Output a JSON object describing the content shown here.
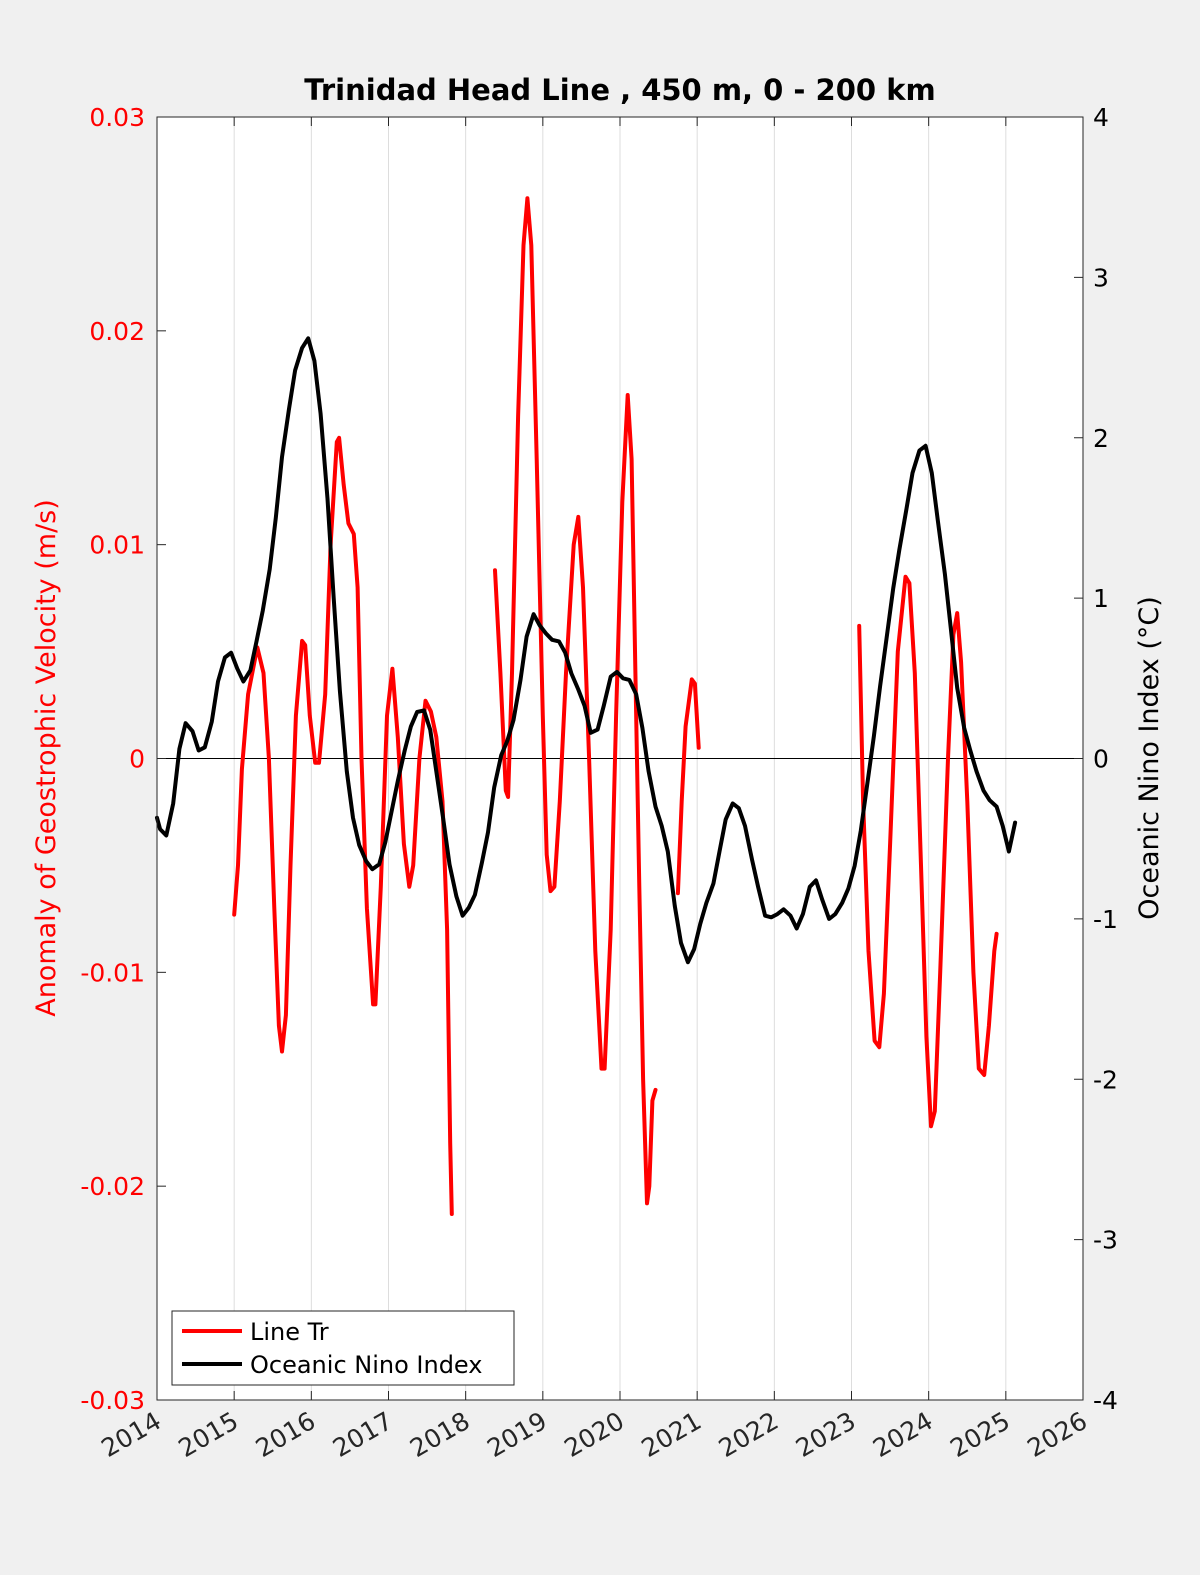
{
  "chart_data": {
    "type": "line",
    "title": "Trinidad Head Line , 450 m, 0 - 200 km",
    "ylabel_left": "Anomaly of Geostrophic Velocity (m/s)",
    "ylabel_right": "Oceanic Nino Index (°C)",
    "xlim": [
      2014,
      2026
    ],
    "ylim_left": [
      -0.03,
      0.03
    ],
    "ylim_right": [
      -4,
      4
    ],
    "x_ticks": [
      "2014",
      "2015",
      "2016",
      "2017",
      "2018",
      "2019",
      "2020",
      "2021",
      "2022",
      "2023",
      "2024",
      "2025",
      "2026"
    ],
    "y_left_ticks": [
      "-0.03",
      "-0.02",
      "-0.01",
      "0",
      "0.01",
      "0.02",
      "0.03"
    ],
    "y_right_ticks": [
      "-4",
      "-3",
      "-2",
      "-1",
      "0",
      "1",
      "2",
      "3",
      "4"
    ],
    "grid": "vertical",
    "legend_position": "bottom-left",
    "colors": {
      "line_tr": "#ff0000",
      "oni": "#000000",
      "left_axis": "#ff0000",
      "right_axis": "#000000",
      "grid": "#dddddd"
    },
    "series": [
      {
        "name": "Line Tr",
        "axis": "left",
        "segments": [
          [
            [
              2015.0,
              -0.0073
            ],
            [
              2015.05,
              -0.005
            ],
            [
              2015.1,
              -0.0005
            ],
            [
              2015.18,
              0.003
            ],
            [
              2015.3,
              0.0052
            ],
            [
              2015.38,
              0.004
            ],
            [
              2015.45,
              0.0
            ],
            [
              2015.52,
              -0.007
            ],
            [
              2015.58,
              -0.0125
            ],
            [
              2015.62,
              -0.0137
            ],
            [
              2015.67,
              -0.012
            ],
            [
              2015.73,
              -0.005
            ],
            [
              2015.8,
              0.002
            ],
            [
              2015.88,
              0.0055
            ],
            [
              2015.92,
              0.0053
            ],
            [
              2015.98,
              0.002
            ],
            [
              2016.05,
              -0.0002
            ],
            [
              2016.1,
              -0.0002
            ],
            [
              2016.18,
              0.003
            ],
            [
              2016.25,
              0.01
            ],
            [
              2016.33,
              0.0148
            ],
            [
              2016.36,
              0.015
            ],
            [
              2016.42,
              0.0128
            ],
            [
              2016.48,
              0.011
            ],
            [
              2016.55,
              0.0105
            ],
            [
              2016.6,
              0.008
            ],
            [
              2016.65,
              0.0
            ],
            [
              2016.72,
              -0.007
            ],
            [
              2016.8,
              -0.0115
            ],
            [
              2016.83,
              -0.0115
            ],
            [
              2016.9,
              -0.006
            ],
            [
              2016.98,
              0.002
            ],
            [
              2017.05,
              0.0042
            ],
            [
              2017.12,
              0.001
            ],
            [
              2017.2,
              -0.004
            ],
            [
              2017.27,
              -0.006
            ],
            [
              2017.32,
              -0.005
            ],
            [
              2017.4,
              0.0
            ],
            [
              2017.48,
              0.0027
            ],
            [
              2017.55,
              0.0022
            ],
            [
              2017.62,
              0.001
            ],
            [
              2017.7,
              -0.002
            ],
            [
              2017.76,
              -0.008
            ],
            [
              2017.8,
              -0.018
            ],
            [
              2017.82,
              -0.0213
            ]
          ],
          [
            [
              2018.38,
              0.0088
            ],
            [
              2018.45,
              0.004
            ],
            [
              2018.52,
              -0.0015
            ],
            [
              2018.55,
              -0.0018
            ],
            [
              2018.6,
              0.004
            ],
            [
              2018.68,
              0.016
            ],
            [
              2018.75,
              0.024
            ],
            [
              2018.8,
              0.0262
            ],
            [
              2018.85,
              0.024
            ],
            [
              2018.92,
              0.014
            ],
            [
              2019.0,
              0.002
            ],
            [
              2019.05,
              -0.0045
            ],
            [
              2019.1,
              -0.0062
            ],
            [
              2019.15,
              -0.006
            ],
            [
              2019.22,
              -0.002
            ],
            [
              2019.3,
              0.004
            ],
            [
              2019.4,
              0.01
            ],
            [
              2019.46,
              0.0113
            ],
            [
              2019.52,
              0.008
            ],
            [
              2019.6,
              0.0
            ],
            [
              2019.68,
              -0.009
            ],
            [
              2019.76,
              -0.0145
            ],
            [
              2019.8,
              -0.0145
            ],
            [
              2019.88,
              -0.008
            ],
            [
              2019.95,
              0.002
            ],
            [
              2020.03,
              0.012
            ],
            [
              2020.1,
              0.017
            ],
            [
              2020.15,
              0.014
            ],
            [
              2020.2,
              0.004
            ],
            [
              2020.25,
              -0.006
            ],
            [
              2020.3,
              -0.015
            ],
            [
              2020.35,
              -0.0208
            ],
            [
              2020.38,
              -0.02
            ],
            [
              2020.42,
              -0.016
            ],
            [
              2020.46,
              -0.0155
            ]
          ],
          [
            [
              2020.75,
              -0.0063
            ],
            [
              2020.8,
              -0.002
            ],
            [
              2020.85,
              0.0015
            ],
            [
              2020.93,
              0.0037
            ],
            [
              2020.97,
              0.0035
            ],
            [
              2021.02,
              0.0005
            ]
          ],
          [
            [
              2023.1,
              0.0062
            ],
            [
              2023.15,
              -0.002
            ],
            [
              2023.22,
              -0.009
            ],
            [
              2023.3,
              -0.0132
            ],
            [
              2023.36,
              -0.0135
            ],
            [
              2023.42,
              -0.011
            ],
            [
              2023.5,
              -0.004
            ],
            [
              2023.6,
              0.005
            ],
            [
              2023.7,
              0.0085
            ],
            [
              2023.75,
              0.0082
            ],
            [
              2023.82,
              0.004
            ],
            [
              2023.9,
              -0.005
            ],
            [
              2023.97,
              -0.013
            ],
            [
              2024.03,
              -0.0172
            ],
            [
              2024.08,
              -0.0165
            ],
            [
              2024.15,
              -0.01
            ],
            [
              2024.25,
              0.0
            ],
            [
              2024.32,
              0.0058
            ],
            [
              2024.37,
              0.0068
            ],
            [
              2024.42,
              0.0045
            ],
            [
              2024.5,
              -0.002
            ],
            [
              2024.58,
              -0.01
            ],
            [
              2024.65,
              -0.0145
            ],
            [
              2024.72,
              -0.0148
            ],
            [
              2024.78,
              -0.0125
            ],
            [
              2024.85,
              -0.009
            ],
            [
              2024.88,
              -0.0082
            ]
          ]
        ]
      },
      {
        "name": "Oceanic Nino Index",
        "axis": "right",
        "segments": [
          [
            [
              2014.0,
              -0.37
            ],
            [
              2014.04,
              -0.44
            ],
            [
              2014.12,
              -0.48
            ],
            [
              2014.21,
              -0.28
            ],
            [
              2014.29,
              0.06
            ],
            [
              2014.37,
              0.22
            ],
            [
              2014.46,
              0.17
            ],
            [
              2014.54,
              0.05
            ],
            [
              2014.62,
              0.07
            ],
            [
              2014.71,
              0.23
            ],
            [
              2014.79,
              0.48
            ],
            [
              2014.88,
              0.63
            ],
            [
              2014.96,
              0.66
            ],
            [
              2015.04,
              0.56
            ],
            [
              2015.12,
              0.48
            ],
            [
              2015.21,
              0.55
            ],
            [
              2015.29,
              0.73
            ],
            [
              2015.37,
              0.92
            ],
            [
              2015.46,
              1.18
            ],
            [
              2015.54,
              1.5
            ],
            [
              2015.62,
              1.88
            ],
            [
              2015.71,
              2.18
            ],
            [
              2015.79,
              2.42
            ],
            [
              2015.88,
              2.56
            ],
            [
              2015.96,
              2.62
            ],
            [
              2016.04,
              2.48
            ],
            [
              2016.12,
              2.15
            ],
            [
              2016.21,
              1.62
            ],
            [
              2016.29,
              1.0
            ],
            [
              2016.37,
              0.42
            ],
            [
              2016.46,
              -0.08
            ],
            [
              2016.54,
              -0.37
            ],
            [
              2016.62,
              -0.54
            ],
            [
              2016.71,
              -0.64
            ],
            [
              2016.79,
              -0.69
            ],
            [
              2016.88,
              -0.66
            ],
            [
              2016.96,
              -0.52
            ],
            [
              2017.04,
              -0.33
            ],
            [
              2017.12,
              -0.14
            ],
            [
              2017.21,
              0.05
            ],
            [
              2017.29,
              0.2
            ],
            [
              2017.37,
              0.29
            ],
            [
              2017.46,
              0.3
            ],
            [
              2017.54,
              0.18
            ],
            [
              2017.62,
              -0.08
            ],
            [
              2017.71,
              -0.38
            ],
            [
              2017.79,
              -0.66
            ],
            [
              2017.88,
              -0.86
            ],
            [
              2017.96,
              -0.98
            ],
            [
              2018.04,
              -0.93
            ],
            [
              2018.12,
              -0.85
            ],
            [
              2018.21,
              -0.65
            ],
            [
              2018.29,
              -0.46
            ],
            [
              2018.37,
              -0.18
            ],
            [
              2018.46,
              0.02
            ],
            [
              2018.54,
              0.11
            ],
            [
              2018.62,
              0.24
            ],
            [
              2018.71,
              0.49
            ],
            [
              2018.79,
              0.76
            ],
            [
              2018.88,
              0.9
            ],
            [
              2018.96,
              0.83
            ],
            [
              2019.04,
              0.78
            ],
            [
              2019.12,
              0.74
            ],
            [
              2019.21,
              0.73
            ],
            [
              2019.29,
              0.66
            ],
            [
              2019.37,
              0.53
            ],
            [
              2019.46,
              0.43
            ],
            [
              2019.54,
              0.33
            ],
            [
              2019.62,
              0.16
            ],
            [
              2019.71,
              0.18
            ],
            [
              2019.79,
              0.33
            ],
            [
              2019.88,
              0.51
            ],
            [
              2019.96,
              0.54
            ],
            [
              2020.04,
              0.5
            ],
            [
              2020.12,
              0.49
            ],
            [
              2020.21,
              0.4
            ],
            [
              2020.29,
              0.19
            ],
            [
              2020.37,
              -0.08
            ],
            [
              2020.46,
              -0.3
            ],
            [
              2020.54,
              -0.42
            ],
            [
              2020.62,
              -0.58
            ],
            [
              2020.71,
              -0.92
            ],
            [
              2020.79,
              -1.15
            ],
            [
              2020.88,
              -1.27
            ],
            [
              2020.96,
              -1.19
            ],
            [
              2021.04,
              -1.03
            ],
            [
              2021.12,
              -0.9
            ],
            [
              2021.21,
              -0.78
            ],
            [
              2021.29,
              -0.58
            ],
            [
              2021.37,
              -0.38
            ],
            [
              2021.46,
              -0.28
            ],
            [
              2021.54,
              -0.31
            ],
            [
              2021.62,
              -0.42
            ],
            [
              2021.71,
              -0.63
            ],
            [
              2021.79,
              -0.8
            ],
            [
              2021.88,
              -0.98
            ],
            [
              2021.96,
              -0.99
            ],
            [
              2022.04,
              -0.97
            ],
            [
              2022.12,
              -0.94
            ],
            [
              2022.21,
              -0.98
            ],
            [
              2022.29,
              -1.06
            ],
            [
              2022.37,
              -0.97
            ],
            [
              2022.46,
              -0.8
            ],
            [
              2022.54,
              -0.76
            ],
            [
              2022.62,
              -0.88
            ],
            [
              2022.71,
              -1.0
            ],
            [
              2022.79,
              -0.97
            ],
            [
              2022.88,
              -0.9
            ],
            [
              2022.96,
              -0.81
            ],
            [
              2023.04,
              -0.67
            ],
            [
              2023.12,
              -0.45
            ],
            [
              2023.21,
              -0.14
            ],
            [
              2023.29,
              0.14
            ],
            [
              2023.37,
              0.45
            ],
            [
              2023.46,
              0.77
            ],
            [
              2023.54,
              1.06
            ],
            [
              2023.62,
              1.3
            ],
            [
              2023.71,
              1.55
            ],
            [
              2023.79,
              1.78
            ],
            [
              2023.88,
              1.92
            ],
            [
              2023.96,
              1.95
            ],
            [
              2024.04,
              1.78
            ],
            [
              2024.12,
              1.48
            ],
            [
              2024.21,
              1.15
            ],
            [
              2024.29,
              0.8
            ],
            [
              2024.37,
              0.44
            ],
            [
              2024.46,
              0.19
            ],
            [
              2024.54,
              0.05
            ],
            [
              2024.62,
              -0.08
            ],
            [
              2024.71,
              -0.2
            ],
            [
              2024.79,
              -0.26
            ],
            [
              2024.88,
              -0.3
            ],
            [
              2024.96,
              -0.42
            ],
            [
              2025.04,
              -0.58
            ],
            [
              2025.12,
              -0.4
            ]
          ]
        ]
      }
    ]
  }
}
